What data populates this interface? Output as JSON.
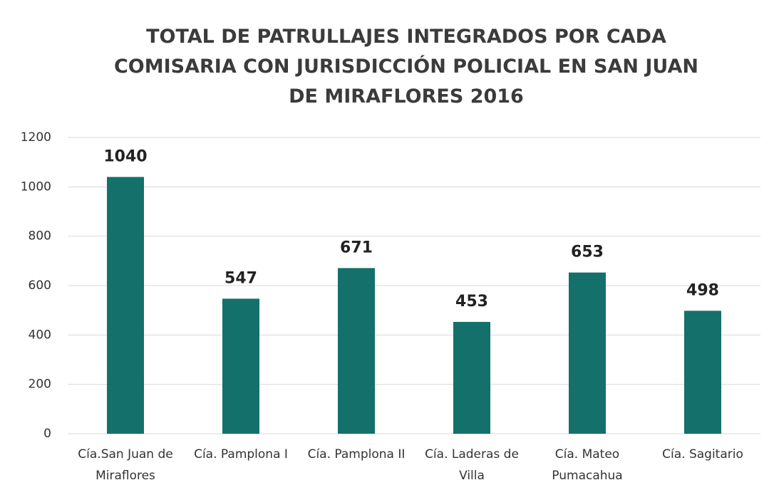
{
  "chart_data": {
    "type": "bar",
    "title": "TOTAL DE PATRULLAJES INTEGRADOS POR CADA COMISARIA CON JURISDICCIÓN POLICIAL EN SAN JUAN DE MIRAFLORES 2016",
    "categories": [
      "Cía.San Juan de Miraflores",
      "Cía. Pamplona I",
      "Cía. Pamplona II",
      "Cía. Laderas de Villa",
      "Cía. Mateo Pumacahua",
      "Cía. Sagitario"
    ],
    "values": [
      1040,
      547,
      671,
      453,
      653,
      498
    ],
    "color": "#14706b",
    "ylim": [
      0,
      1200
    ],
    "yticks": [
      0,
      200,
      400,
      600,
      800,
      1000,
      1200
    ],
    "grid": true
  }
}
